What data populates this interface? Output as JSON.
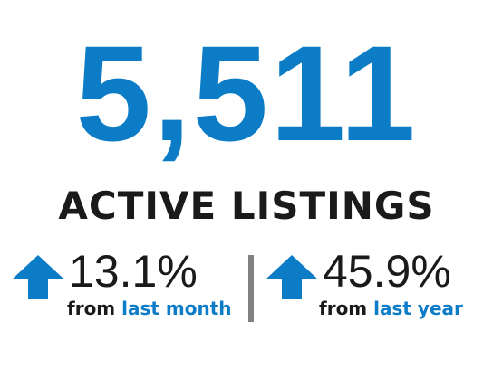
{
  "main": {
    "count": "5,511",
    "label": "ACTIVE LISTINGS"
  },
  "stats": [
    {
      "icon": "arrow-up-icon",
      "percent": "13.1%",
      "prefix": "from",
      "period": "last month"
    },
    {
      "icon": "arrow-up-icon",
      "percent": "45.9%",
      "prefix": "from",
      "period": "last year"
    }
  ],
  "colors": {
    "accent": "#0c7cc7",
    "text": "#1a1a1a",
    "divider": "#808080",
    "background": "#ffffff"
  }
}
